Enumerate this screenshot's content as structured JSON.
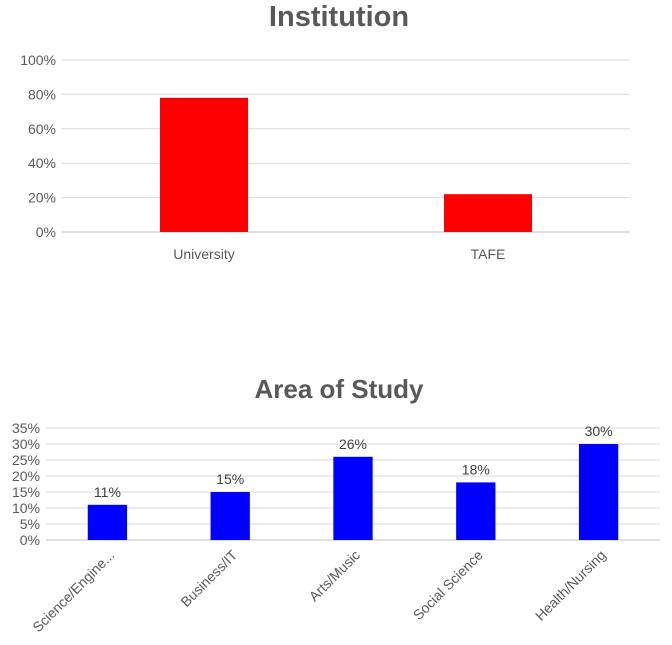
{
  "chart_data": [
    {
      "type": "bar",
      "title": "Institution",
      "categories": [
        "University",
        "TAFE"
      ],
      "values": [
        78,
        22
      ],
      "ylim": [
        0,
        100
      ],
      "yticks": [
        "0%",
        "20%",
        "40%",
        "60%",
        "80%",
        "100%"
      ],
      "ytick_values": [
        0,
        20,
        40,
        60,
        80,
        100
      ],
      "grid": true,
      "data_labels": false,
      "color": "#ff0000"
    },
    {
      "type": "bar",
      "title": "Area of Study",
      "categories": [
        "Science/Engine...",
        "Business/IT",
        "Arts/Music",
        "Social Science",
        "Health/Nursing"
      ],
      "values": [
        11,
        15,
        26,
        18,
        30
      ],
      "value_labels": [
        "11%",
        "15%",
        "26%",
        "18%",
        "30%"
      ],
      "ylim": [
        0,
        35
      ],
      "yticks": [
        "0%",
        "5%",
        "10%",
        "15%",
        "20%",
        "25%",
        "30%",
        "35%"
      ],
      "ytick_values": [
        0,
        5,
        10,
        15,
        20,
        25,
        30,
        35
      ],
      "grid": true,
      "data_labels": true,
      "color": "#0000ff"
    }
  ]
}
